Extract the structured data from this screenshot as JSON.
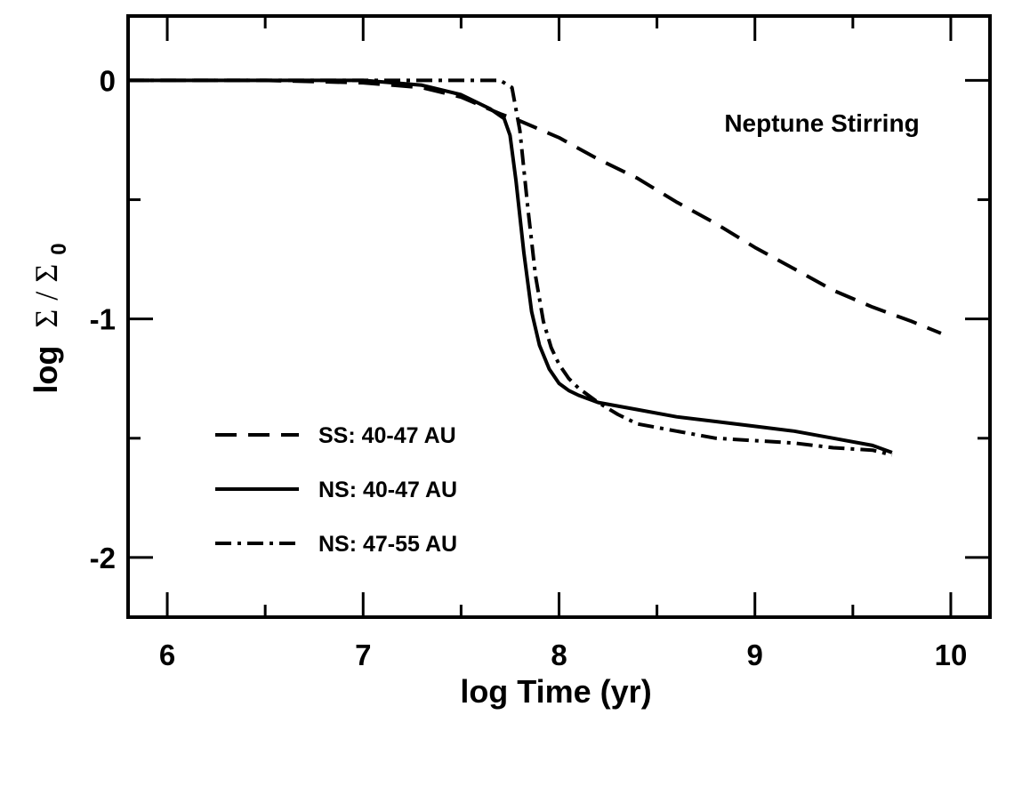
{
  "chart_data": {
    "type": "line",
    "title": "",
    "xlabel": "log Time (yr)",
    "ylabel_prefix": "log",
    "ylabel_num": "Σ",
    "ylabel_slash": "/",
    "ylabel_den": "Σ",
    "ylabel_den_sub": "0",
    "xlim": [
      5.8,
      10.2
    ],
    "ylim": [
      -2.25,
      0.27
    ],
    "xticks": [
      6,
      7,
      8,
      9,
      10
    ],
    "xtick_labels": [
      "6",
      "7",
      "8",
      "9",
      "10"
    ],
    "xminor": [
      6.5,
      7.5,
      8.5,
      9.5
    ],
    "yticks": [
      0,
      -1,
      -2
    ],
    "ytick_labels": [
      "0",
      "-1",
      "-2"
    ],
    "yminor": [
      -0.5,
      -1.5
    ],
    "grid": false,
    "annotation": "Neptune Stirring",
    "legend_position": "lower-left",
    "series": [
      {
        "name": "SS: 40-47 AU",
        "style": "dashed",
        "x": [
          5.8,
          6.5,
          7.0,
          7.3,
          7.5,
          7.7,
          7.8,
          8.0,
          8.2,
          8.4,
          8.6,
          8.8,
          9.0,
          9.2,
          9.4,
          9.6,
          9.8,
          9.95
        ],
        "y": [
          0.0,
          0.0,
          -0.01,
          -0.03,
          -0.07,
          -0.14,
          -0.17,
          -0.24,
          -0.33,
          -0.41,
          -0.51,
          -0.6,
          -0.7,
          -0.79,
          -0.88,
          -0.95,
          -1.01,
          -1.06
        ]
      },
      {
        "name": "NS: 40-47 AU",
        "style": "solid",
        "x": [
          5.8,
          6.5,
          7.0,
          7.3,
          7.5,
          7.65,
          7.72,
          7.75,
          7.78,
          7.82,
          7.86,
          7.9,
          7.95,
          8.0,
          8.05,
          8.1,
          8.2,
          8.4,
          8.6,
          8.8,
          9.0,
          9.2,
          9.4,
          9.6,
          9.7
        ],
        "y": [
          0.0,
          0.0,
          0.0,
          -0.02,
          -0.06,
          -0.12,
          -0.16,
          -0.23,
          -0.42,
          -0.72,
          -0.97,
          -1.11,
          -1.21,
          -1.27,
          -1.3,
          -1.32,
          -1.35,
          -1.38,
          -1.41,
          -1.43,
          -1.45,
          -1.47,
          -1.5,
          -1.53,
          -1.56
        ]
      },
      {
        "name": "NS: 47-55 AU",
        "style": "dash-dot",
        "x": [
          5.8,
          6.5,
          7.0,
          7.3,
          7.5,
          7.7,
          7.76,
          7.8,
          7.84,
          7.88,
          7.92,
          7.96,
          8.0,
          8.05,
          8.1,
          8.2,
          8.3,
          8.4,
          8.6,
          8.8,
          9.0,
          9.2,
          9.4,
          9.6,
          9.7
        ],
        "y": [
          0.0,
          0.0,
          0.0,
          0.0,
          0.0,
          0.0,
          -0.03,
          -0.21,
          -0.53,
          -0.82,
          -1.01,
          -1.12,
          -1.19,
          -1.25,
          -1.29,
          -1.35,
          -1.4,
          -1.44,
          -1.47,
          -1.5,
          -1.51,
          -1.52,
          -1.54,
          -1.55,
          -1.57
        ]
      }
    ]
  }
}
